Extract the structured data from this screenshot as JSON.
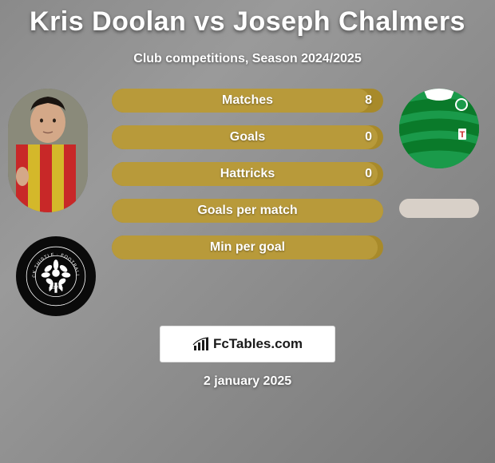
{
  "title": "Kris Doolan vs Joseph Chalmers",
  "subtitle": "Club competitions, Season 2024/2025",
  "date": "2 january 2025",
  "logo_text": "FcTables.com",
  "colors": {
    "bar_base": "#a88a2a",
    "bar_fill": "#b89a3a",
    "text": "#ffffff"
  },
  "bars": [
    {
      "label": "Matches",
      "value": "8",
      "fill_pct": 95
    },
    {
      "label": "Goals",
      "value": "0",
      "fill_pct": 98
    },
    {
      "label": "Hattricks",
      "value": "0",
      "fill_pct": 98
    },
    {
      "label": "Goals per match",
      "value": "",
      "fill_pct": 100
    },
    {
      "label": "Min per goal",
      "value": "",
      "fill_pct": 98
    }
  ],
  "player_left_colors": {
    "shirt_stripe1": "#d4b82a",
    "shirt_stripe2": "#c82828",
    "skin": "#d4a888",
    "hair": "#1a1410"
  },
  "player_right_colors": {
    "shirt": "#1a9a4a",
    "stripe": "#0a7a2a",
    "collar": "#ffffff",
    "badge": "#ffffff"
  },
  "club_left": {
    "bg": "#0a0a0a",
    "flower": "#ffffff",
    "year": "1876"
  }
}
